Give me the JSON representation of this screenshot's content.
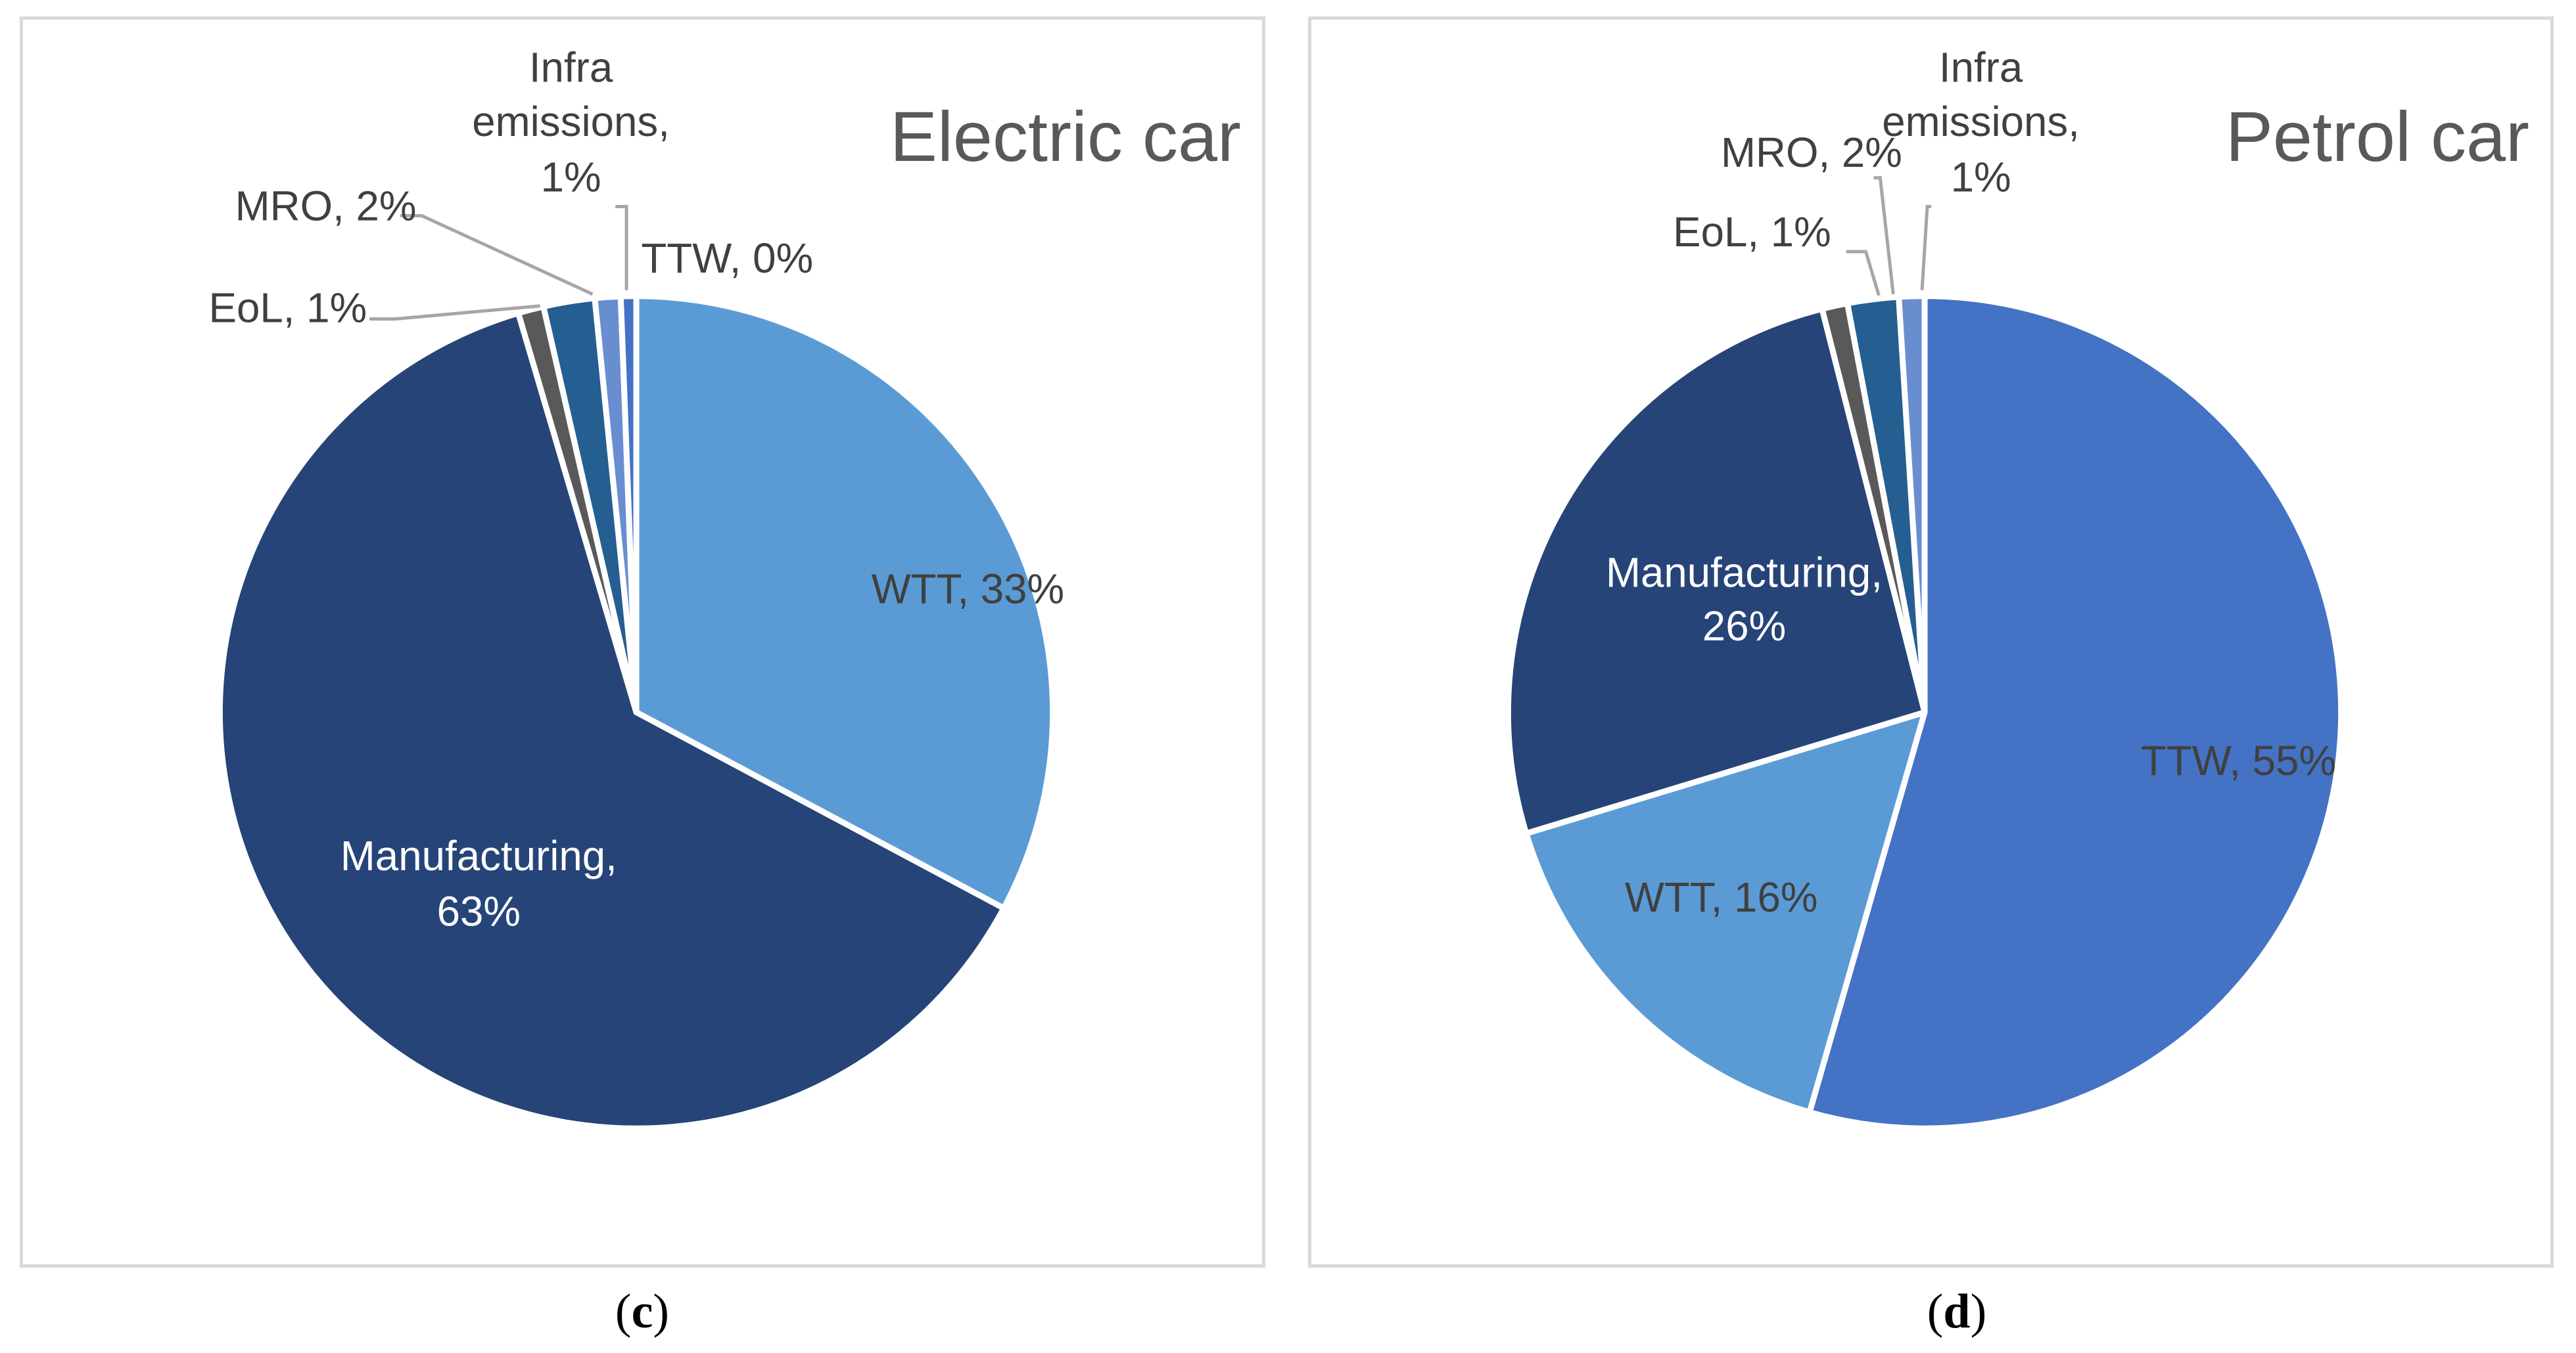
{
  "chart_data": [
    {
      "type": "pie",
      "title": "Electric car",
      "caption_letter": "c",
      "slices": [
        {
          "label": "WTT",
          "value": 33,
          "text": "WTT, 33%",
          "color": "#5b9bd5",
          "text_color": "#404040"
        },
        {
          "label": "Manufacturing",
          "value": 63,
          "text": "Manufacturing, 63%",
          "color": "#264478",
          "text_color": "#ffffff"
        },
        {
          "label": "EoL",
          "value": 1,
          "text": "EoL, 1%",
          "color": "#595959",
          "text_color": "#404040"
        },
        {
          "label": "MRO",
          "value": 2,
          "text": "MRO, 2%",
          "color": "#255e91",
          "text_color": "#404040"
        },
        {
          "label": "Infra emissions",
          "value": 1,
          "text": "Infra emissions, 1%",
          "color": "#698ed0",
          "text_color": "#404040"
        },
        {
          "label": "TTW",
          "value": 0,
          "text": "TTW, 0%",
          "color": "#4472c4",
          "text_color": "#404040"
        }
      ]
    },
    {
      "type": "pie",
      "title": "Petrol car",
      "caption_letter": "d",
      "slices": [
        {
          "label": "TTW",
          "value": 55,
          "text": "TTW, 55%",
          "color": "#4472c4",
          "text_color": "#404040"
        },
        {
          "label": "WTT",
          "value": 16,
          "text": "WTT, 16%",
          "color": "#5b9bd5",
          "text_color": "#404040"
        },
        {
          "label": "Manufacturing",
          "value": 26,
          "text": "Manufacturing, 26%",
          "color": "#264478",
          "text_color": "#ffffff"
        },
        {
          "label": "EoL",
          "value": 1,
          "text": "EoL, 1%",
          "color": "#595959",
          "text_color": "#404040"
        },
        {
          "label": "MRO",
          "value": 2,
          "text": "MRO, 2%",
          "color": "#255e91",
          "text_color": "#404040"
        },
        {
          "label": "Infra emissions",
          "value": 1,
          "text": "Infra emissions, 1%",
          "color": "#698ed0",
          "text_color": "#404040"
        }
      ]
    }
  ]
}
